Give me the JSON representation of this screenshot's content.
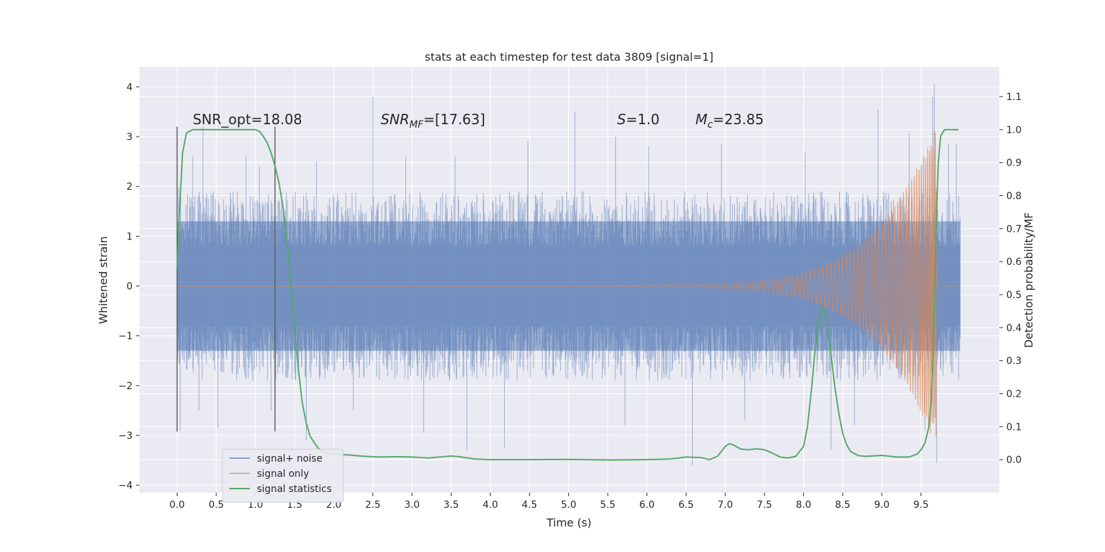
{
  "chart_data": {
    "type": "line",
    "title": "stats at each timestep for test data 3809 [signal=1]",
    "xlabel": "Time (s)",
    "ylabel": "Whitened strain",
    "y2label": "Detection probability/MF",
    "xlim": [
      -0.48,
      10.5
    ],
    "ylim": [
      -4.15,
      4.4
    ],
    "y2lim": [
      -0.1,
      1.19
    ],
    "xticks": [
      "0.0",
      "0.5",
      "1.0",
      "1.5",
      "2.0",
      "2.5",
      "3.0",
      "3.5",
      "4.0",
      "4.5",
      "5.0",
      "5.5",
      "6.0",
      "6.5",
      "7.0",
      "7.5",
      "8.0",
      "8.5",
      "9.0",
      "9.5"
    ],
    "yticks": [
      "−4",
      "−3",
      "−2",
      "−1",
      "0",
      "1",
      "2",
      "3",
      "4"
    ],
    "y2ticks": [
      "0.0",
      "0.1",
      "0.2",
      "0.3",
      "0.4",
      "0.5",
      "0.6",
      "0.7",
      "0.8",
      "0.9",
      "1.0",
      "1.1"
    ],
    "grid": true,
    "legend_position": "lower-left",
    "annotations": [
      {
        "text_pre": "SNR_opt=18.08",
        "text_italic": "",
        "text_sub": "",
        "text_post": "",
        "x": 0.2,
        "y": 3.25
      },
      {
        "text_pre": "",
        "text_italic": "SNR",
        "text_sub": "MF",
        "text_post": "=[17.63]",
        "x": 2.6,
        "y": 3.25
      },
      {
        "text_pre": "",
        "text_italic": "S",
        "text_sub": "",
        "text_post": "=1.0",
        "x": 5.62,
        "y": 3.25
      },
      {
        "text_pre": "",
        "text_italic": "M",
        "text_sub": "c",
        "text_post": "=23.85",
        "x": 6.62,
        "y": 3.25
      }
    ],
    "vlines": [
      {
        "x": 0.0,
        "ymin": -2.92,
        "ymax": 3.2
      },
      {
        "x": 1.25,
        "ymin": -2.92,
        "ymax": 3.2
      }
    ],
    "noise": {
      "x_start": 0.0,
      "x_end": 10.0,
      "band_outer": 1.3,
      "band_inner": 0.8,
      "typical_peak": 1.9,
      "spikes": [
        {
          "x": 0.02,
          "y": 2.0
        },
        {
          "x": 0.04,
          "y": -2.9
        },
        {
          "x": 0.2,
          "y": 2.6
        },
        {
          "x": 0.33,
          "y": 3.2
        },
        {
          "x": 0.28,
          "y": -2.5
        },
        {
          "x": 0.52,
          "y": -2.85
        },
        {
          "x": 0.88,
          "y": 2.6
        },
        {
          "x": 1.05,
          "y": 2.4
        },
        {
          "x": 1.2,
          "y": -2.5
        },
        {
          "x": 1.65,
          "y": -3.1
        },
        {
          "x": 1.78,
          "y": 2.5
        },
        {
          "x": 2.25,
          "y": -2.5
        },
        {
          "x": 2.5,
          "y": 3.8
        },
        {
          "x": 2.92,
          "y": 2.6
        },
        {
          "x": 3.15,
          "y": -2.95
        },
        {
          "x": 3.55,
          "y": 2.6
        },
        {
          "x": 3.7,
          "y": -3.3
        },
        {
          "x": 4.18,
          "y": -3.25
        },
        {
          "x": 4.48,
          "y": 2.9
        },
        {
          "x": 5.08,
          "y": 3.5
        },
        {
          "x": 5.6,
          "y": 3.0
        },
        {
          "x": 5.72,
          "y": -2.8
        },
        {
          "x": 6.02,
          "y": 2.8
        },
        {
          "x": 6.58,
          "y": -3.6
        },
        {
          "x": 6.95,
          "y": 2.85
        },
        {
          "x": 7.25,
          "y": -2.7
        },
        {
          "x": 8.02,
          "y": 2.7
        },
        {
          "x": 8.35,
          "y": -3.3
        },
        {
          "x": 8.65,
          "y": -2.8
        },
        {
          "x": 8.95,
          "y": 3.55
        },
        {
          "x": 9.35,
          "y": 3.05
        },
        {
          "x": 9.55,
          "y": -2.9
        },
        {
          "x": 9.65,
          "y": 3.8
        },
        {
          "x": 9.67,
          "y": 4.05
        },
        {
          "x": 9.7,
          "y": -3.55
        },
        {
          "x": 9.85,
          "y": 2.85
        },
        {
          "x": 9.95,
          "y": 2.85
        },
        {
          "x": 9.98,
          "y": 1.8
        }
      ]
    },
    "signal": {
      "x_start": 0.0,
      "x_end": 9.7,
      "chirp_start": 5.0,
      "peak_amplitude": 3.2,
      "cycles": 150
    },
    "series": [
      {
        "name": "signal+ noise",
        "color": "#4c72b0",
        "opacity": 0.5
      },
      {
        "name": "signal only",
        "color": "#dd8452",
        "opacity": 0.5
      },
      {
        "name": "signal statistics",
        "color": "#55a868",
        "axis": "right",
        "x": [
          0.0,
          0.03,
          0.07,
          0.12,
          0.2,
          0.3,
          0.5,
          0.7,
          0.9,
          1.0,
          1.05,
          1.1,
          1.15,
          1.2,
          1.25,
          1.3,
          1.35,
          1.4,
          1.45,
          1.5,
          1.55,
          1.6,
          1.65,
          1.7,
          1.8,
          1.9,
          2.0,
          2.2,
          2.4,
          2.6,
          2.8,
          3.0,
          3.2,
          3.4,
          3.5,
          3.6,
          3.8,
          4.0,
          4.5,
          5.0,
          5.5,
          6.0,
          6.3,
          6.5,
          6.7,
          6.8,
          6.9,
          6.95,
          7.0,
          7.05,
          7.1,
          7.2,
          7.3,
          7.4,
          7.5,
          7.6,
          7.7,
          7.8,
          7.9,
          8.0,
          8.05,
          8.1,
          8.15,
          8.2,
          8.25,
          8.3,
          8.35,
          8.4,
          8.45,
          8.5,
          8.55,
          8.6,
          8.7,
          8.8,
          9.0,
          9.2,
          9.35,
          9.45,
          9.5,
          9.55,
          9.6,
          9.63,
          9.66,
          9.68,
          9.7,
          9.72,
          9.75,
          9.8,
          9.9,
          9.98
        ],
        "y": [
          0.58,
          0.75,
          0.93,
          0.99,
          1.0,
          1.0,
          1.0,
          1.0,
          1.0,
          1.0,
          0.995,
          0.98,
          0.96,
          0.93,
          0.89,
          0.84,
          0.77,
          0.67,
          0.54,
          0.4,
          0.27,
          0.17,
          0.11,
          0.07,
          0.035,
          0.02,
          0.017,
          0.014,
          0.01,
          0.008,
          0.009,
          0.008,
          0.005,
          0.009,
          0.011,
          0.009,
          0.002,
          0.0,
          0.0,
          0.001,
          -0.001,
          0.0,
          0.002,
          0.008,
          0.006,
          0.0,
          0.01,
          0.025,
          0.04,
          0.048,
          0.045,
          0.032,
          0.03,
          0.033,
          0.03,
          0.02,
          0.008,
          0.005,
          0.01,
          0.04,
          0.1,
          0.21,
          0.34,
          0.43,
          0.465,
          0.42,
          0.32,
          0.22,
          0.14,
          0.08,
          0.045,
          0.025,
          0.012,
          0.01,
          0.013,
          0.008,
          0.008,
          0.017,
          0.03,
          0.05,
          0.1,
          0.18,
          0.35,
          0.55,
          0.75,
          0.9,
          0.98,
          1.0,
          1.0,
          1.0
        ]
      }
    ]
  }
}
